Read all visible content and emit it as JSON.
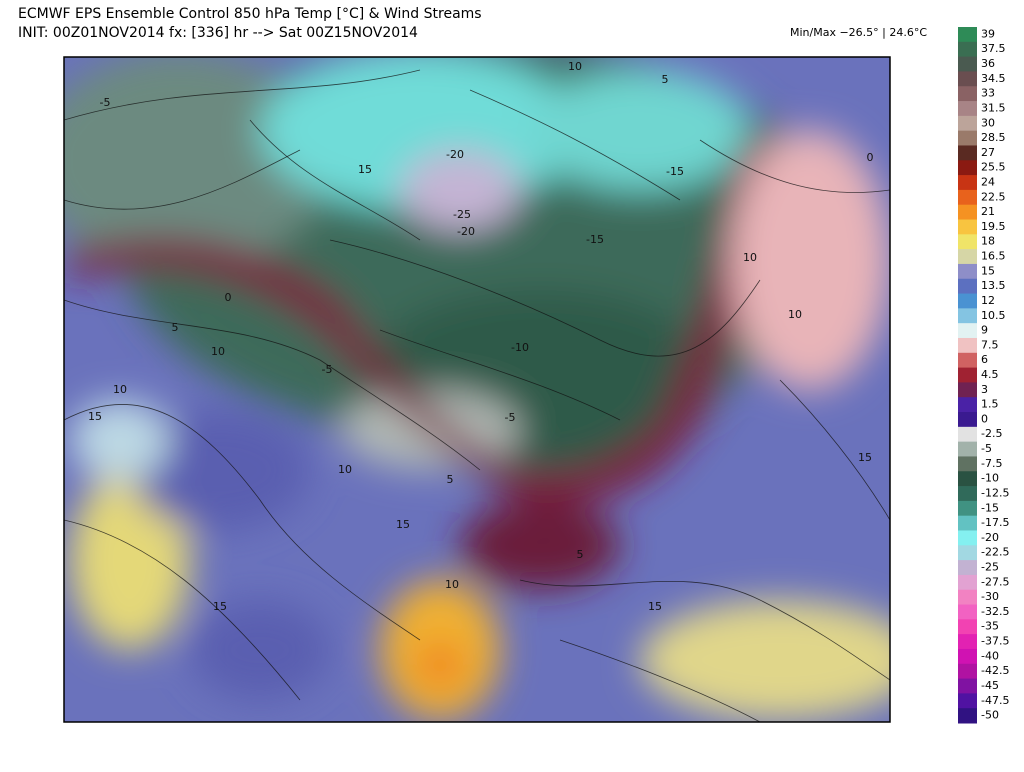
{
  "header": {
    "title": "ECMWF EPS Ensemble Control 850 hPa Temp [°C] & Wind Streams",
    "subtitle": "INIT: 00Z01NOV2014 fx: [336] hr --> Sat 00Z15NOV2014",
    "minmax": "Min/Max −26.5° | 24.6°C"
  },
  "colorbar": {
    "levels": [
      {
        "value": 39,
        "color": "#2e8b57"
      },
      {
        "value": 37.5,
        "color": "#3a6e52"
      },
      {
        "value": 36,
        "color": "#4a5a50"
      },
      {
        "value": 34.5,
        "color": "#6a4e50"
      },
      {
        "value": 33,
        "color": "#8a6264"
      },
      {
        "value": 31.5,
        "color": "#a88486"
      },
      {
        "value": 30,
        "color": "#bca49a"
      },
      {
        "value": 28.5,
        "color": "#9a7a6a"
      },
      {
        "value": 27,
        "color": "#5a2a22"
      },
      {
        "value": 25.5,
        "color": "#8b1a12"
      },
      {
        "value": 24,
        "color": "#c83414"
      },
      {
        "value": 22.5,
        "color": "#e8621c"
      },
      {
        "value": 21,
        "color": "#f59222"
      },
      {
        "value": 19.5,
        "color": "#f8c440"
      },
      {
        "value": 18,
        "color": "#f0e468"
      },
      {
        "value": 16.5,
        "color": "#d6d6a6"
      },
      {
        "value": 15,
        "color": "#8e8ec8"
      },
      {
        "value": 13.5,
        "color": "#5c70c0"
      },
      {
        "value": 12,
        "color": "#4a92d2"
      },
      {
        "value": 10.5,
        "color": "#84c4e2"
      },
      {
        "value": 9,
        "color": "#e2f2f2"
      },
      {
        "value": 7.5,
        "color": "#f0c2c2"
      },
      {
        "value": 6,
        "color": "#d06262"
      },
      {
        "value": 4.5,
        "color": "#a02232"
      },
      {
        "value": 3,
        "color": "#702252"
      },
      {
        "value": 1.5,
        "color": "#4a22a6"
      },
      {
        "value": 0,
        "color": "#3a1a90"
      },
      {
        "value": -2.5,
        "color": "#e2e2e2"
      },
      {
        "value": -5,
        "color": "#a2b2aa"
      },
      {
        "value": -7.5,
        "color": "#607262"
      },
      {
        "value": -10,
        "color": "#2a5242"
      },
      {
        "value": -12.5,
        "color": "#306a5a"
      },
      {
        "value": -15,
        "color": "#409282"
      },
      {
        "value": -17.5,
        "color": "#62c2c2"
      },
      {
        "value": -20,
        "color": "#84f0f0"
      },
      {
        "value": -22.5,
        "color": "#a2d8e2"
      },
      {
        "value": -25,
        "color": "#c2b2d2"
      },
      {
        "value": -27.5,
        "color": "#e2a2d2"
      },
      {
        "value": -30,
        "color": "#f282c2"
      },
      {
        "value": -32.5,
        "color": "#f262c2"
      },
      {
        "value": -35,
        "color": "#f242b2"
      },
      {
        "value": -37.5,
        "color": "#e222b2"
      },
      {
        "value": -40,
        "color": "#d012b2"
      },
      {
        "value": -42.5,
        "color": "#b012a2"
      },
      {
        "value": -45,
        "color": "#8012a2"
      },
      {
        "value": -47.5,
        "color": "#5012a2"
      },
      {
        "value": -50,
        "color": "#301282"
      }
    ]
  },
  "map": {
    "contour_labels": [
      -5,
      10,
      5,
      15,
      -20,
      -25,
      -20,
      -15,
      -15,
      10,
      0,
      5,
      10,
      10,
      15,
      -10,
      -5,
      10,
      15,
      10,
      5,
      15,
      10,
      5,
      15,
      15,
      0,
      -5
    ]
  }
}
